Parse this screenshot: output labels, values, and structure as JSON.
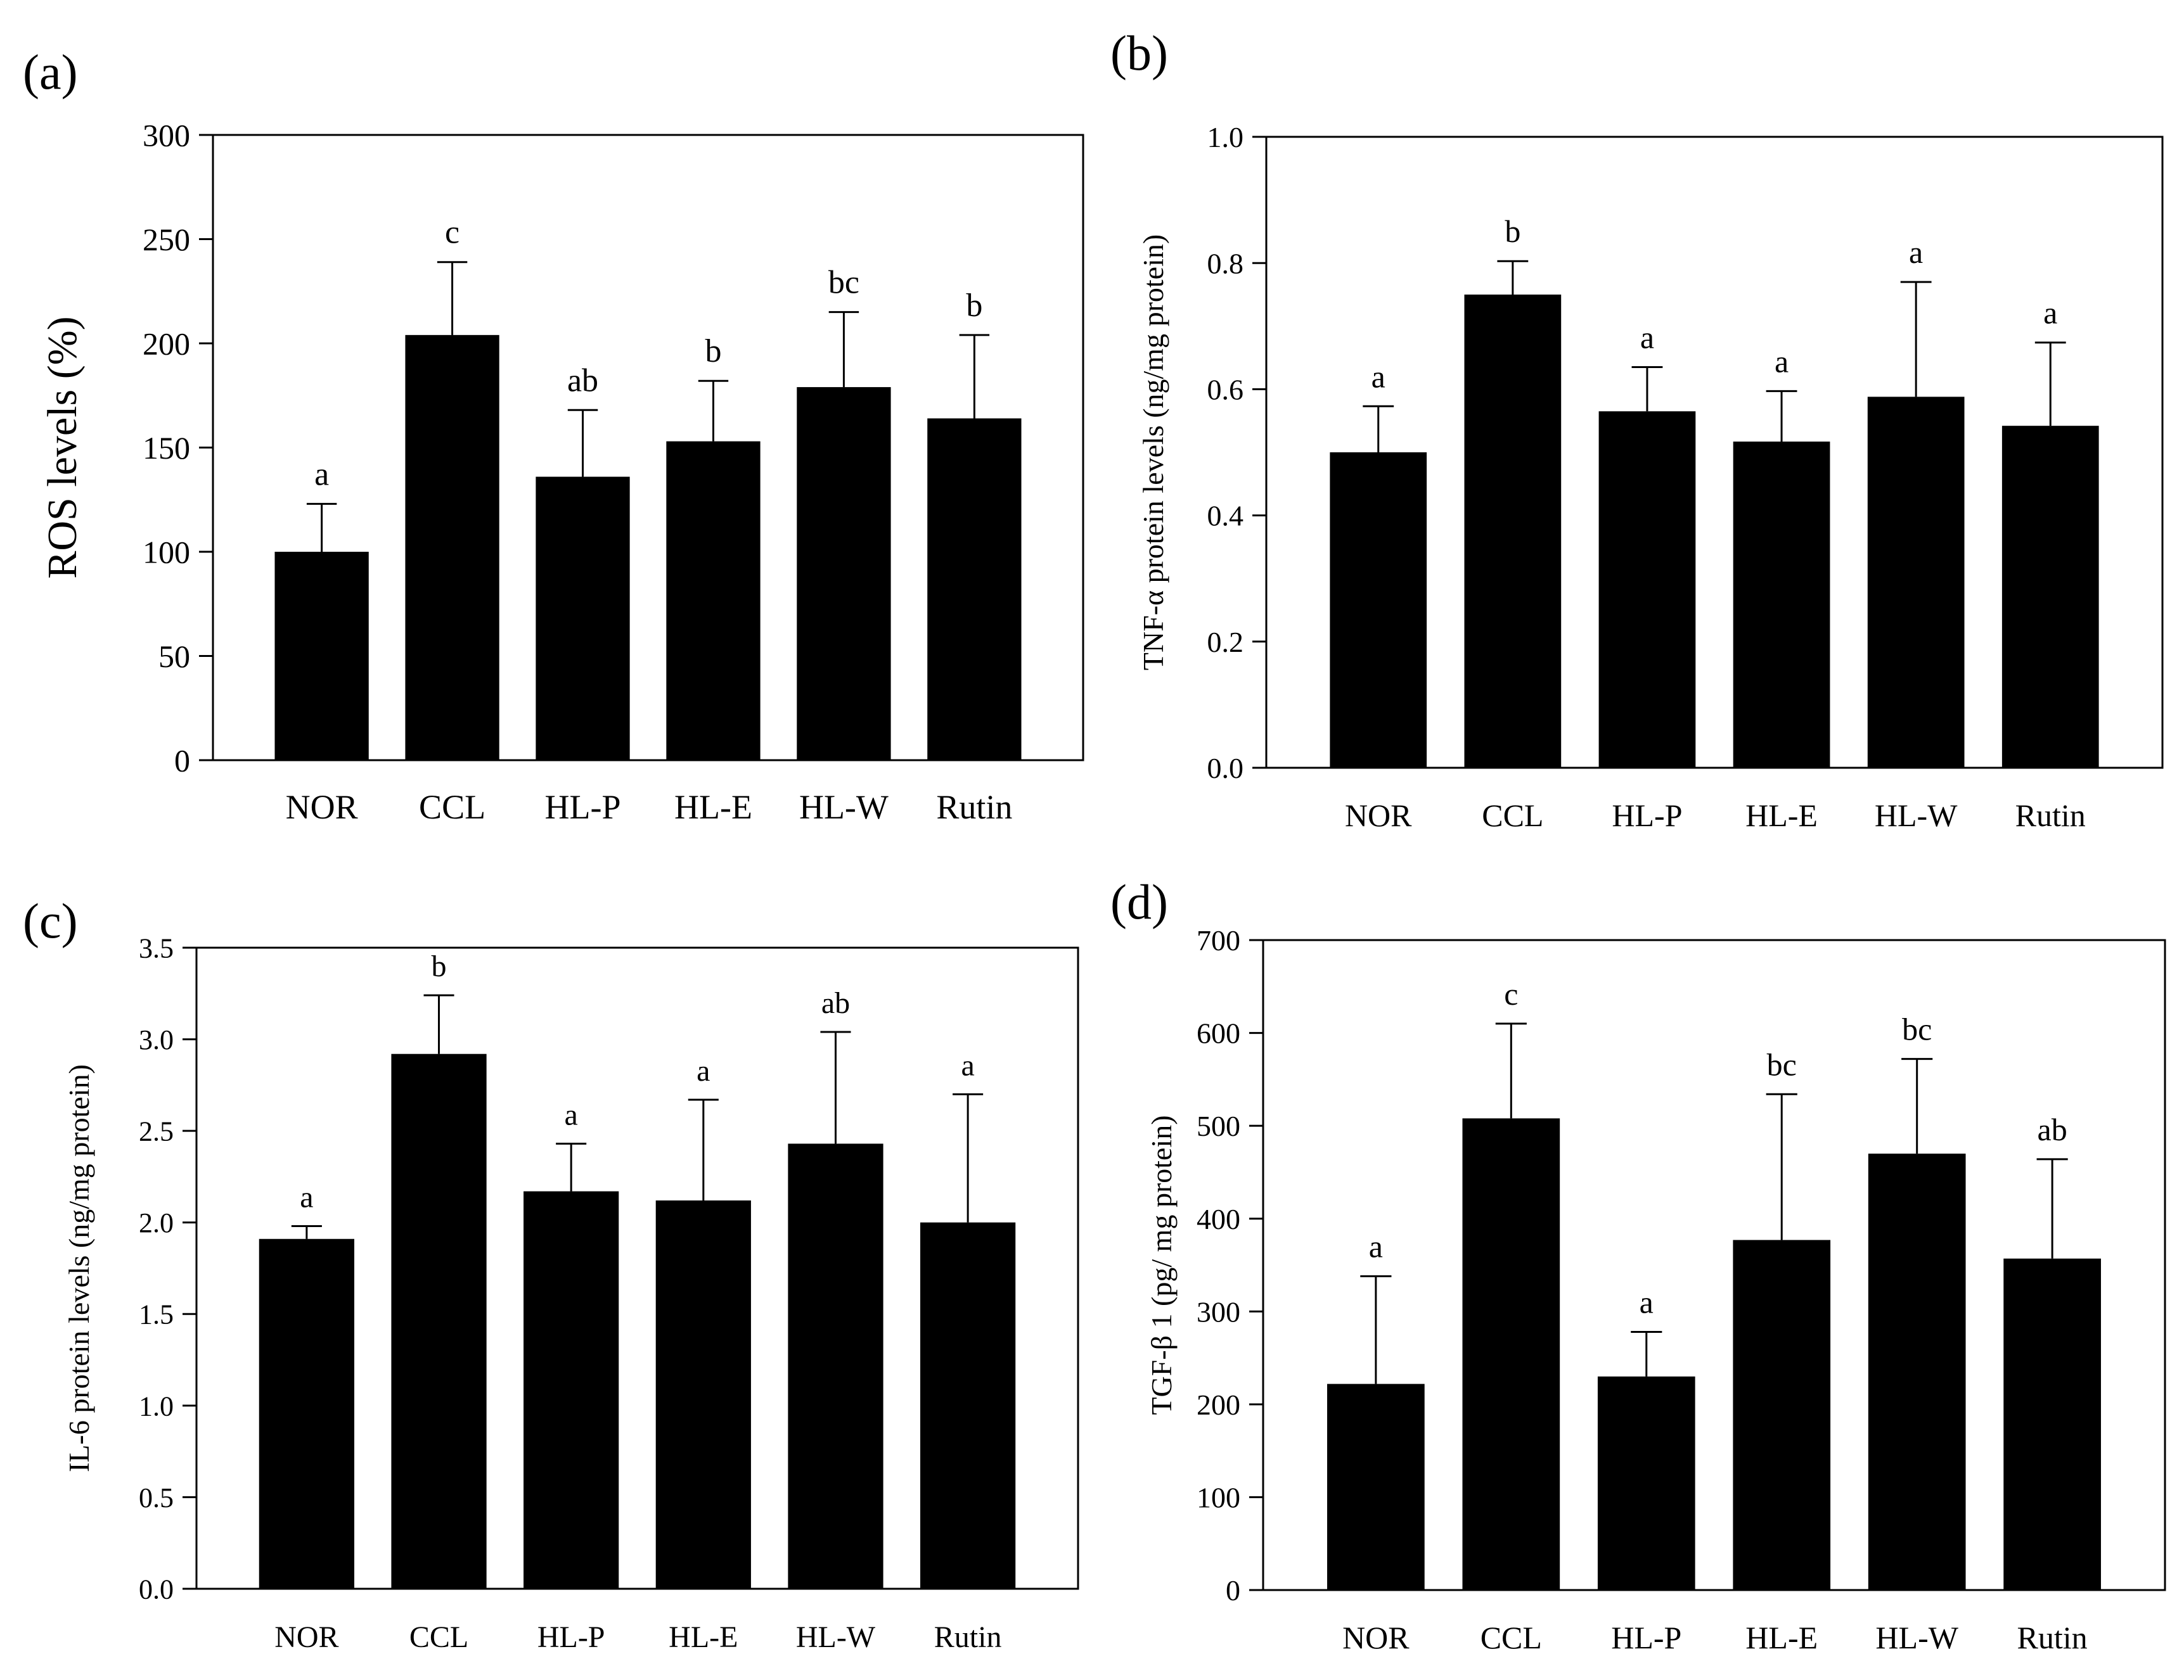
{
  "colors": {
    "bar": "#000000",
    "axis": "#000000",
    "background": "#ffffff"
  },
  "chart_data": [
    {
      "panel": "(a)",
      "type": "bar",
      "title": "",
      "xlabel": "",
      "ylabel": "ROS levels (%)",
      "categories": [
        "NOR",
        "CCL",
        "HL-P",
        "HL-E",
        "HL-W",
        "Rutin"
      ],
      "values": [
        100,
        204,
        136,
        153,
        179,
        164
      ],
      "errors": [
        23,
        35,
        32,
        29,
        36,
        40
      ],
      "letters": [
        "a",
        "c",
        "ab",
        "b",
        "bc",
        "b"
      ],
      "ylim": [
        0,
        300
      ],
      "yticks": [
        "0",
        "50",
        "100",
        "150",
        "200",
        "250",
        "300"
      ],
      "grid": false
    },
    {
      "panel": "(b)",
      "type": "bar",
      "title": "",
      "xlabel": "",
      "ylabel": "TNF-α protein levels (ng/mg protein)",
      "categories": [
        "NOR",
        "CCL",
        "HL-P",
        "HL-E",
        "HL-W",
        "Rutin"
      ],
      "values": [
        0.5,
        0.75,
        0.565,
        0.517,
        0.588,
        0.542
      ],
      "errors": [
        0.073,
        0.053,
        0.07,
        0.08,
        0.182,
        0.132
      ],
      "letters": [
        "a",
        "b",
        "a",
        "a",
        "a",
        "a"
      ],
      "ylim": [
        0,
        1.0
      ],
      "yticks": [
        "0.0",
        "0.2",
        "0.4",
        "0.6",
        "0.8",
        "1.0"
      ],
      "grid": false
    },
    {
      "panel": "(c)",
      "type": "bar",
      "title": "",
      "xlabel": "",
      "ylabel": "IL-6 protein levels (ng/mg protein)",
      "categories": [
        "NOR",
        "CCL",
        "HL-P",
        "HL-E",
        "HL-W",
        "Rutin"
      ],
      "values": [
        1.91,
        2.92,
        2.17,
        2.12,
        2.43,
        2.0
      ],
      "errors": [
        0.07,
        0.32,
        0.26,
        0.55,
        0.61,
        0.7
      ],
      "letters": [
        "a",
        "b",
        "a",
        "a",
        "ab",
        "a"
      ],
      "ylim": [
        0,
        3.5
      ],
      "yticks": [
        "0.0",
        "0.5",
        "1.0",
        "1.5",
        "2.0",
        "2.5",
        "3.0",
        "3.5"
      ],
      "grid": false
    },
    {
      "panel": "(d)",
      "type": "bar",
      "title": "",
      "xlabel": "",
      "ylabel": "TGF-β 1 (pg/ mg protein)",
      "categories": [
        "NOR",
        "CCL",
        "HL-P",
        "HL-E",
        "HL-W",
        "Rutin"
      ],
      "values": [
        222,
        508,
        230,
        377,
        470,
        357
      ],
      "errors": [
        116,
        102,
        48,
        157,
        102,
        107
      ],
      "letters": [
        "a",
        "c",
        "a",
        "bc",
        "bc",
        "ab"
      ],
      "ylim": [
        0,
        700
      ],
      "yticks": [
        "0",
        "100",
        "200",
        "300",
        "400",
        "500",
        "600",
        "700"
      ],
      "grid": false
    }
  ]
}
